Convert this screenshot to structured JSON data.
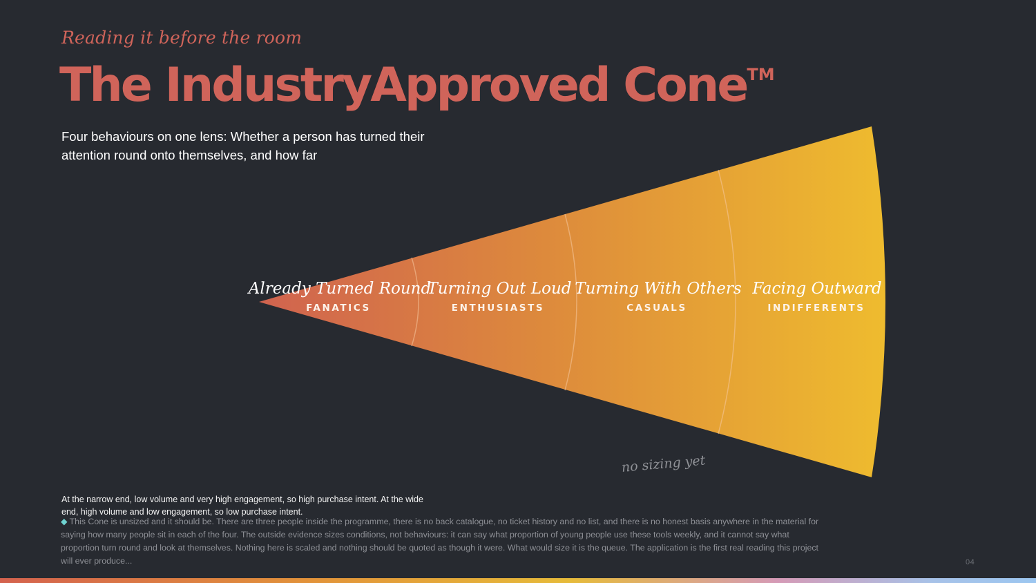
{
  "kicker": "Reading it before the room",
  "title": "The IndustryApproved Cone",
  "title_mark": "TM",
  "subtitle": "Four behaviours on one lens: Whether a person has turned their attention round onto themselves, and how far",
  "segments": [
    {
      "label": "Already Turned Round",
      "category": "FANATICS"
    },
    {
      "label": "Turning Out Loud",
      "category": "ENTHUSIASTS"
    },
    {
      "label": "Turning With Others",
      "category": "CASUALS"
    },
    {
      "label": "Facing Outward",
      "category": "INDIFFERENTS"
    }
  ],
  "sizing_note": "no sizing yet",
  "caption": "At the narrow end, low volume and very high engagement, so high purchase intent. At the wide end, high volume and low engagement, so low purchase intent.",
  "note": "This Cone is unsized and it should be. There are three people inside the programme, there is no back catalogue, no ticket history and no list, and there is no honest basis anywhere in the material for saying how many people sit in each of the four. The outside evidence sizes conditions, not behaviours: it can say what proportion of young people use these tools weekly, and it cannot say what proportion turn round and look at themselves. Nothing here is scaled and nothing should be quoted as though it were. What would size it is the queue. The application is the first real reading this project will ever produce...",
  "page_number": "04",
  "colors": {
    "background": "#272a30",
    "accent": "#d0645a",
    "cone_start": "#d0634f",
    "cone_end": "#efbd2e"
  }
}
